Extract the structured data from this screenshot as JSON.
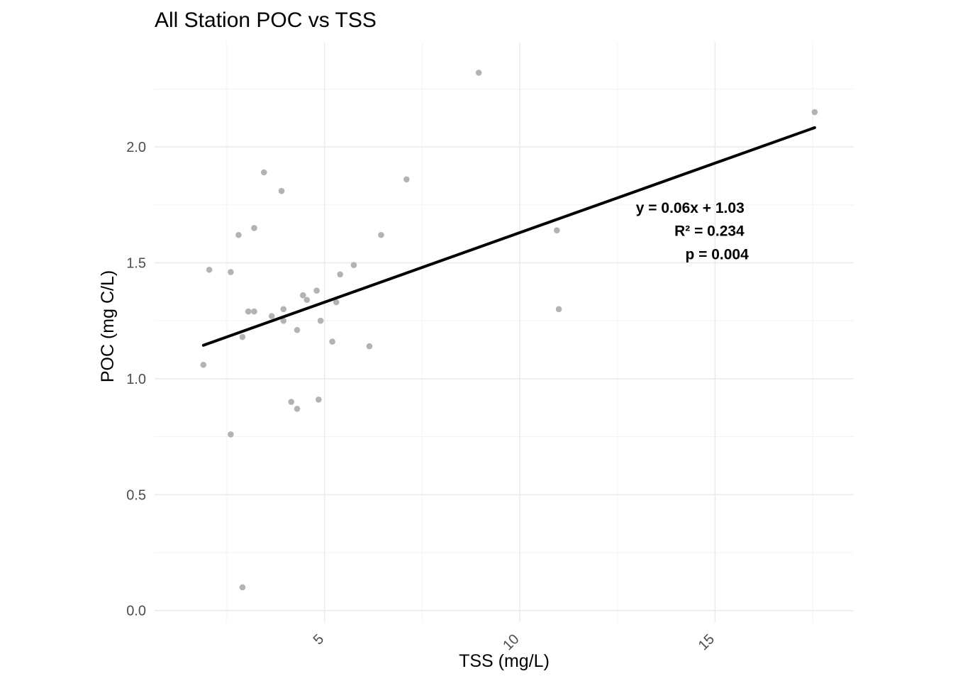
{
  "chart_data": {
    "type": "scatter",
    "title": "All Station POC vs TSS",
    "xlabel": "TSS (mg/L)",
    "ylabel": "POC (mg C/L)",
    "xlim": [
      0.65,
      18.55
    ],
    "ylim": [
      -0.05,
      2.45
    ],
    "x_ticks": [
      5,
      10,
      15
    ],
    "x_tick_labels": [
      "5",
      "10",
      "15"
    ],
    "x_minor_ticks": [
      2.5,
      7.5,
      12.5,
      17.5
    ],
    "y_ticks": [
      0.0,
      0.5,
      1.0,
      1.5,
      2.0
    ],
    "y_tick_labels": [
      "0.0",
      "0.5",
      "1.0",
      "1.5",
      "2.0"
    ],
    "y_minor_ticks": [
      0.25,
      0.75,
      1.25,
      1.75,
      2.25
    ],
    "grid": true,
    "point_color": "#b3b3b3",
    "line_color": "#000000",
    "points": [
      {
        "x": 1.9,
        "y": 1.06
      },
      {
        "x": 2.05,
        "y": 1.47
      },
      {
        "x": 2.6,
        "y": 1.46
      },
      {
        "x": 2.6,
        "y": 0.76
      },
      {
        "x": 2.8,
        "y": 1.62
      },
      {
        "x": 2.9,
        "y": 1.18
      },
      {
        "x": 2.9,
        "y": 0.1
      },
      {
        "x": 3.05,
        "y": 1.29
      },
      {
        "x": 3.2,
        "y": 1.29
      },
      {
        "x": 3.2,
        "y": 1.65
      },
      {
        "x": 3.45,
        "y": 1.89
      },
      {
        "x": 3.65,
        "y": 1.27
      },
      {
        "x": 3.9,
        "y": 1.81
      },
      {
        "x": 3.95,
        "y": 1.3
      },
      {
        "x": 3.95,
        "y": 1.25
      },
      {
        "x": 4.15,
        "y": 0.9
      },
      {
        "x": 4.3,
        "y": 1.21
      },
      {
        "x": 4.3,
        "y": 0.87
      },
      {
        "x": 4.45,
        "y": 1.36
      },
      {
        "x": 4.55,
        "y": 1.34
      },
      {
        "x": 4.8,
        "y": 1.38
      },
      {
        "x": 4.85,
        "y": 0.91
      },
      {
        "x": 4.9,
        "y": 1.25
      },
      {
        "x": 5.2,
        "y": 1.16
      },
      {
        "x": 5.3,
        "y": 1.33
      },
      {
        "x": 5.4,
        "y": 1.45
      },
      {
        "x": 5.75,
        "y": 1.49
      },
      {
        "x": 6.15,
        "y": 1.14
      },
      {
        "x": 6.45,
        "y": 1.62
      },
      {
        "x": 7.1,
        "y": 1.86
      },
      {
        "x": 8.95,
        "y": 2.32
      },
      {
        "x": 10.95,
        "y": 1.64
      },
      {
        "x": 11.0,
        "y": 1.3
      },
      {
        "x": 17.55,
        "y": 2.15
      }
    ],
    "fit_line": {
      "slope": 0.06,
      "intercept": 1.03,
      "x_range": [
        1.9,
        17.55
      ]
    },
    "annotations": [
      "y = 0.06x + 1.03",
      "R² = 0.234",
      "p = 0.004"
    ]
  }
}
